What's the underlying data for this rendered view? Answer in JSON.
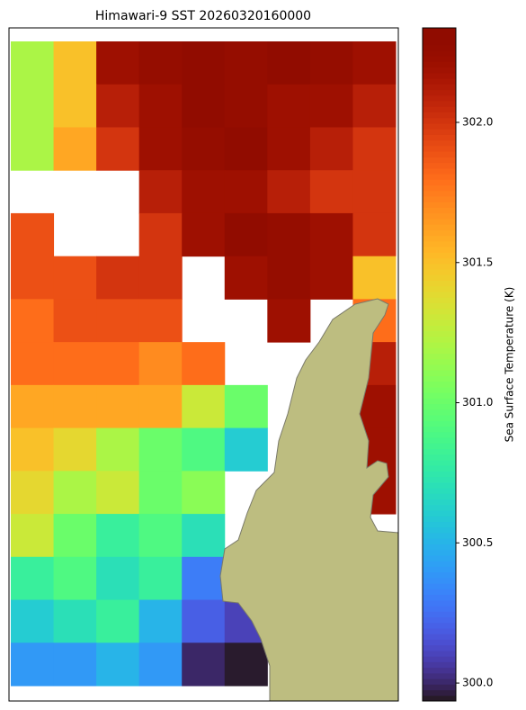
{
  "chart_data": {
    "type": "heatmap",
    "title": "Himawari-9 SST 20260320160000",
    "colormap": "turbo",
    "colorbar_label": "Sea Surface Temperature (K)",
    "clim": [
      299.936,
      302.337
    ],
    "cticks": [
      {
        "value": 300,
        "label": "300.0"
      },
      {
        "value": 300.5,
        "label": "300.5"
      },
      {
        "value": 301,
        "label": "301.0"
      },
      {
        "value": 301.5,
        "label": "301.5"
      },
      {
        "value": 302,
        "label": "302.0"
      }
    ],
    "values": [
      [
        301.2,
        301.5,
        302.2,
        302.25,
        302.3,
        302.25,
        302.3,
        302.25,
        302.2
      ],
      [
        301.2,
        301.5,
        302.1,
        302.2,
        302.3,
        302.25,
        302.2,
        302.2,
        302.1
      ],
      [
        301.2,
        301.6,
        302.0,
        302.2,
        302.25,
        302.3,
        302.2,
        302.1,
        302.0
      ],
      [
        null,
        null,
        null,
        302.1,
        302.2,
        302.2,
        302.1,
        302.0,
        302.0
      ],
      [
        301.9,
        null,
        null,
        302.0,
        302.2,
        302.3,
        302.25,
        302.2,
        302.0
      ],
      [
        301.9,
        301.9,
        302.0,
        302.0,
        null,
        302.2,
        302.25,
        302.2,
        301.5
      ],
      [
        301.8,
        301.9,
        301.9,
        301.9,
        null,
        null,
        302.2,
        null,
        301.8
      ],
      [
        301.8,
        301.8,
        301.8,
        301.7,
        301.8,
        null,
        null,
        null,
        302.1
      ],
      [
        301.6,
        301.6,
        301.6,
        301.6,
        301.3,
        301.0,
        null,
        null,
        302.2
      ],
      [
        301.5,
        301.4,
        301.2,
        301.0,
        300.9,
        300.6,
        null,
        null,
        302.2
      ],
      [
        301.4,
        301.2,
        301.3,
        301.0,
        301.1,
        null,
        null,
        null,
        302.2
      ],
      [
        301.3,
        301.0,
        300.8,
        300.9,
        300.7,
        null,
        null,
        null,
        null
      ],
      [
        300.8,
        300.9,
        300.7,
        300.8,
        300.3,
        null,
        null,
        null,
        null
      ],
      [
        300.6,
        300.7,
        300.8,
        300.5,
        300.2,
        300.1,
        null,
        null,
        null
      ],
      [
        300.4,
        300.4,
        300.5,
        300.4,
        300.0,
        299.95,
        null,
        null,
        null
      ]
    ]
  }
}
